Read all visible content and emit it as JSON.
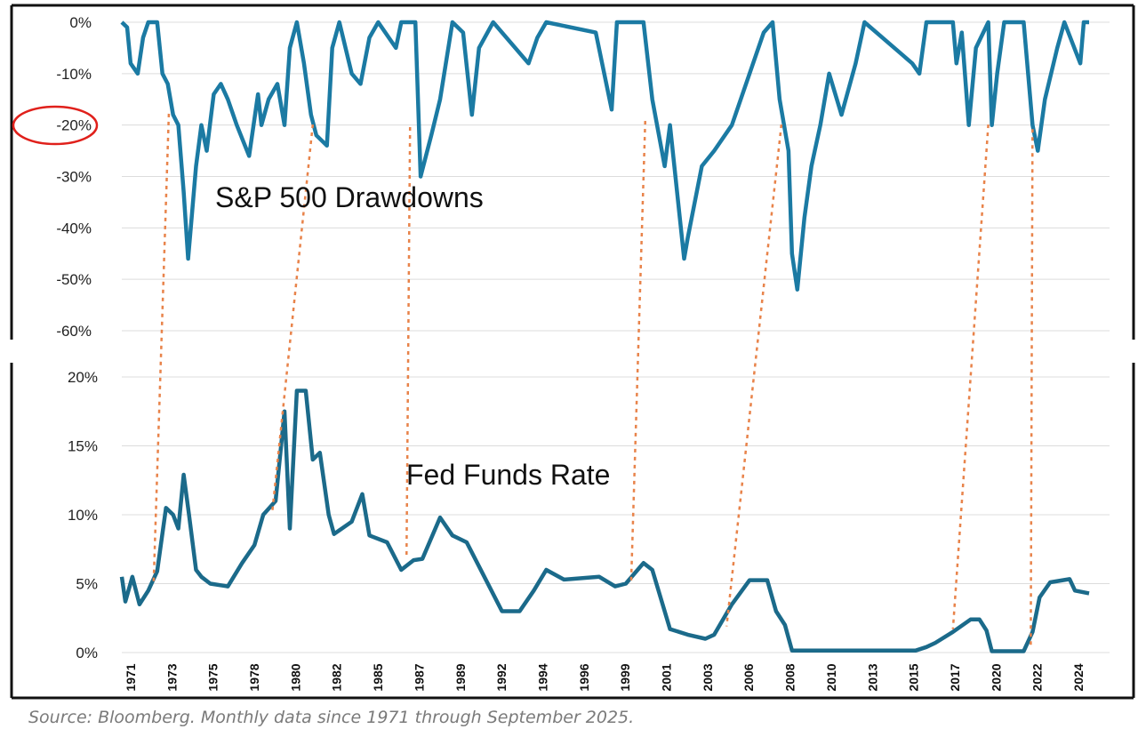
{
  "chart_data": [
    {
      "type": "line",
      "title": "S&P 500 Drawdowns",
      "ylim": [
        -60,
        0
      ],
      "yticks": [
        "0%",
        "-10%",
        "-20%",
        "-30%",
        "-40%",
        "-50%",
        "-60%"
      ],
      "ytick_values": [
        0,
        -10,
        -20,
        -30,
        -40,
        -50,
        -60
      ],
      "highlighted_tick": "-20%",
      "grid": true,
      "color": "#1b7aa3",
      "x": [
        1971.0,
        1971.3,
        1971.5,
        1971.9,
        1972.2,
        1972.5,
        1973.0,
        1973.3,
        1973.6,
        1973.9,
        1974.2,
        1974.5,
        1974.75,
        1974.9,
        1975.2,
        1975.5,
        1975.8,
        1976.2,
        1976.6,
        1977.0,
        1977.5,
        1978.2,
        1978.7,
        1978.9,
        1979.3,
        1979.8,
        1980.2,
        1980.5,
        1980.9,
        1981.3,
        1981.7,
        1982.0,
        1982.6,
        1982.9,
        1983.3,
        1984.0,
        1984.5,
        1985.0,
        1985.5,
        1986.5,
        1986.8,
        1987.6,
        1987.9,
        1988.5,
        1989.0,
        1989.7,
        1990.3,
        1990.8,
        1991.2,
        1992.0,
        1994.0,
        1994.5,
        1995.0,
        1997.8,
        1998.7,
        1999.0,
        2000.5,
        2001.0,
        2001.7,
        2002.0,
        2002.8,
        2003.0,
        2003.8,
        2004.5,
        2005.5,
        2006.5,
        2007.3,
        2007.8,
        2008.2,
        2008.7,
        2008.9,
        2009.2,
        2009.6,
        2010.0,
        2010.5,
        2011.0,
        2011.7,
        2012.5,
        2013.0,
        2015.7,
        2016.1,
        2016.5,
        2018.0,
        2018.2,
        2018.5,
        2018.9,
        2019.3,
        2020.0,
        2020.2,
        2020.5,
        2020.9,
        2022.0,
        2022.5,
        2022.8,
        2023.2,
        2023.9,
        2024.3,
        2025.2,
        2025.4,
        2025.7
      ],
      "y": [
        0,
        -1,
        -8,
        -10,
        -3,
        0,
        0,
        -10,
        -12,
        -18,
        -20,
        -33,
        -46,
        -40,
        -28,
        -20,
        -25,
        -14,
        -12,
        -15,
        -20,
        -26,
        -14,
        -20,
        -15,
        -12,
        -20,
        -5,
        0,
        -8,
        -18,
        -22,
        -24,
        -5,
        0,
        -10,
        -12,
        -3,
        0,
        -5,
        0,
        0,
        -30,
        -22,
        -15,
        0,
        -2,
        -18,
        -5,
        0,
        -8,
        -3,
        0,
        -2,
        -17,
        0,
        0,
        -15,
        -28,
        -20,
        -46,
        -42,
        -28,
        -25,
        -20,
        -10,
        -2,
        0,
        -15,
        -25,
        -45,
        -52,
        -38,
        -28,
        -20,
        -10,
        -18,
        -8,
        0,
        -8,
        -10,
        0,
        0,
        -8,
        -2,
        -20,
        -5,
        0,
        -20,
        -10,
        0,
        0,
        -20,
        -25,
        -15,
        -5,
        0,
        -8,
        0,
        0
      ]
    },
    {
      "type": "line",
      "title": "Fed Funds Rate",
      "ylim": [
        0,
        20
      ],
      "yticks": [
        "20%",
        "15%",
        "10%",
        "5%",
        "0%"
      ],
      "ytick_values": [
        20,
        15,
        10,
        5,
        0
      ],
      "grid": true,
      "color": "#1b6a8a",
      "x": [
        1971.0,
        1971.2,
        1971.6,
        1972.0,
        1972.5,
        1973.0,
        1973.5,
        1973.9,
        1974.2,
        1974.5,
        1974.8,
        1975.2,
        1975.5,
        1976.0,
        1977.0,
        1977.8,
        1978.5,
        1979.0,
        1979.7,
        1980.2,
        1980.5,
        1980.9,
        1981.4,
        1981.8,
        1982.2,
        1982.7,
        1983.0,
        1984.0,
        1984.6,
        1985.0,
        1986.0,
        1986.8,
        1987.5,
        1988.0,
        1989.0,
        1989.7,
        1990.5,
        1991.5,
        1992.5,
        1993.5,
        1994.3,
        1995.0,
        1996.0,
        1998.0,
        1998.9,
        1999.5,
        2000.5,
        2001.0,
        2001.7,
        2002.0,
        2003.0,
        2004.0,
        2004.5,
        2005.5,
        2006.5,
        2007.5,
        2008.0,
        2008.5,
        2008.9,
        2015.9,
        2016.5,
        2017.0,
        2018.0,
        2019.0,
        2019.5,
        2019.9,
        2020.2,
        2022.0,
        2022.5,
        2022.9,
        2023.5,
        2024.6,
        2024.9,
        2025.7
      ],
      "y": [
        5.5,
        3.7,
        5.5,
        3.5,
        4.5,
        5.9,
        10.5,
        10,
        9,
        12.9,
        10,
        6,
        5.5,
        5,
        4.8,
        6.5,
        7.8,
        10,
        11,
        17.5,
        9,
        19,
        19,
        14,
        14.5,
        10,
        8.6,
        9.5,
        11.5,
        8.5,
        8,
        6,
        6.7,
        6.8,
        9.8,
        8.5,
        8,
        5.5,
        3,
        3,
        4.5,
        6,
        5.3,
        5.5,
        4.8,
        5,
        6.5,
        6,
        3,
        1.7,
        1.3,
        1,
        1.3,
        3.5,
        5.25,
        5.25,
        3,
        2,
        0.15,
        0.15,
        0.4,
        0.7,
        1.5,
        2.4,
        2.4,
        1.6,
        0.1,
        0.1,
        1.5,
        4,
        5.1,
        5.33,
        4.5,
        4.3
      ]
    }
  ],
  "x_axis": {
    "tick_labels": [
      "1971",
      "1973",
      "1975",
      "1978",
      "1980",
      "1982",
      "1985",
      "1987",
      "1989",
      "1992",
      "1994",
      "1996",
      "1999",
      "2001",
      "2003",
      "2006",
      "2008",
      "2010",
      "2013",
      "2015",
      "2017",
      "2020",
      "2022",
      "2024"
    ],
    "range": [
      1971.0,
      2025.7
    ]
  },
  "connectors": {
    "color": "#e8834a",
    "links": [
      {
        "drawdown_date": 1973.66,
        "drawdown": -17.8,
        "rate_date": 1972.8,
        "rate": 5.1
      },
      {
        "drawdown_date": 1981.8,
        "drawdown": -19.9,
        "rate_date": 1979.5,
        "rate": 10.1
      },
      {
        "drawdown_date": 1987.3,
        "drawdown": -20.4,
        "rate_date": 1987.1,
        "rate": 6.8
      },
      {
        "drawdown_date": 2000.6,
        "drawdown": -19.2,
        "rate_date": 1999.8,
        "rate": 5.0
      },
      {
        "drawdown_date": 2008.3,
        "drawdown": -19.9,
        "rate_date": 2005.2,
        "rate": 1.9
      },
      {
        "drawdown_date": 2020.0,
        "drawdown": -19.9,
        "rate_date": 2018.0,
        "rate": 1.7
      },
      {
        "drawdown_date": 2022.5,
        "drawdown": -20.8,
        "rate_date": 2022.4,
        "rate": 0.4
      }
    ]
  },
  "highlight_color": "#e0201b",
  "source": "Source: Bloomberg. Monthly data since 1971 through September 2025."
}
